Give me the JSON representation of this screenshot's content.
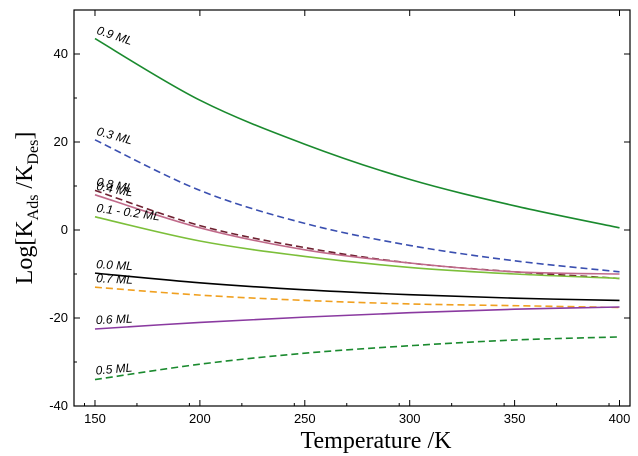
{
  "chart_data": {
    "type": "line",
    "xlabel": "Temperature /K",
    "ylabel": {
      "prefix": "Log[K",
      "sub1": "Ads",
      "mid": " /K",
      "sub2": "Des",
      "suffix": "]"
    },
    "xlim": [
      140,
      405
    ],
    "ylim": [
      -40,
      50
    ],
    "xticks": [
      150,
      200,
      250,
      300,
      350,
      400
    ],
    "yticks": [
      -40,
      -20,
      0,
      20,
      40
    ],
    "grid": false,
    "legend": "none",
    "series": [
      {
        "name": "0.9 ML",
        "color": "#1a8a2e",
        "dash": "solid",
        "x": [
          150,
          200,
          250,
          300,
          350,
          400
        ],
        "y": [
          43.5,
          29.5,
          19.5,
          11.5,
          5.5,
          0.5
        ]
      },
      {
        "name": "0.3 ML",
        "color": "#3a4fb0",
        "dash": "dashed",
        "x": [
          150,
          200,
          250,
          300,
          350,
          400
        ],
        "y": [
          20.5,
          9.0,
          1.5,
          -3.5,
          -7.0,
          -9.5
        ]
      },
      {
        "name": "0.8 ML",
        "color": "#6e2030",
        "dash": "dashed",
        "x": [
          150,
          200,
          250,
          300,
          350,
          400
        ],
        "y": [
          9.0,
          1.0,
          -4.0,
          -7.5,
          -9.5,
          -11.0
        ]
      },
      {
        "name": "0.4 ML",
        "color": "#c06a8a",
        "dash": "solid",
        "x": [
          150,
          200,
          250,
          300,
          350,
          400
        ],
        "y": [
          8.0,
          0.5,
          -4.5,
          -7.5,
          -9.5,
          -10.0
        ]
      },
      {
        "name": "0.1 - 0.2 ML",
        "color": "#7cbf3a",
        "dash": "solid",
        "x": [
          150,
          200,
          250,
          300,
          350,
          400
        ],
        "y": [
          3.0,
          -2.5,
          -6.0,
          -8.5,
          -10.0,
          -11.0
        ]
      },
      {
        "name": "0.0 ML",
        "color": "#000000",
        "dash": "solid",
        "x": [
          150,
          200,
          250,
          300,
          350,
          400
        ],
        "y": [
          -9.8,
          -12.0,
          -13.6,
          -14.7,
          -15.5,
          -16.0
        ]
      },
      {
        "name": "0.7 ML",
        "color": "#f0a020",
        "dash": "dashed",
        "x": [
          150,
          200,
          250,
          300,
          350,
          400
        ],
        "y": [
          -13.0,
          -14.8,
          -16.0,
          -16.8,
          -17.2,
          -17.6
        ]
      },
      {
        "name": "0.6 ML",
        "color": "#8a3aa0",
        "dash": "solid",
        "x": [
          150,
          200,
          250,
          300,
          350,
          400
        ],
        "y": [
          -22.5,
          -21.0,
          -19.8,
          -18.8,
          -18.0,
          -17.5
        ]
      },
      {
        "name": "0.5 ML",
        "color": "#1a8a2e",
        "dash": "dashed",
        "x": [
          150,
          200,
          250,
          300,
          350,
          400
        ],
        "y": [
          -34.0,
          -30.5,
          -28.0,
          -26.3,
          -25.0,
          -24.3
        ]
      }
    ]
  }
}
